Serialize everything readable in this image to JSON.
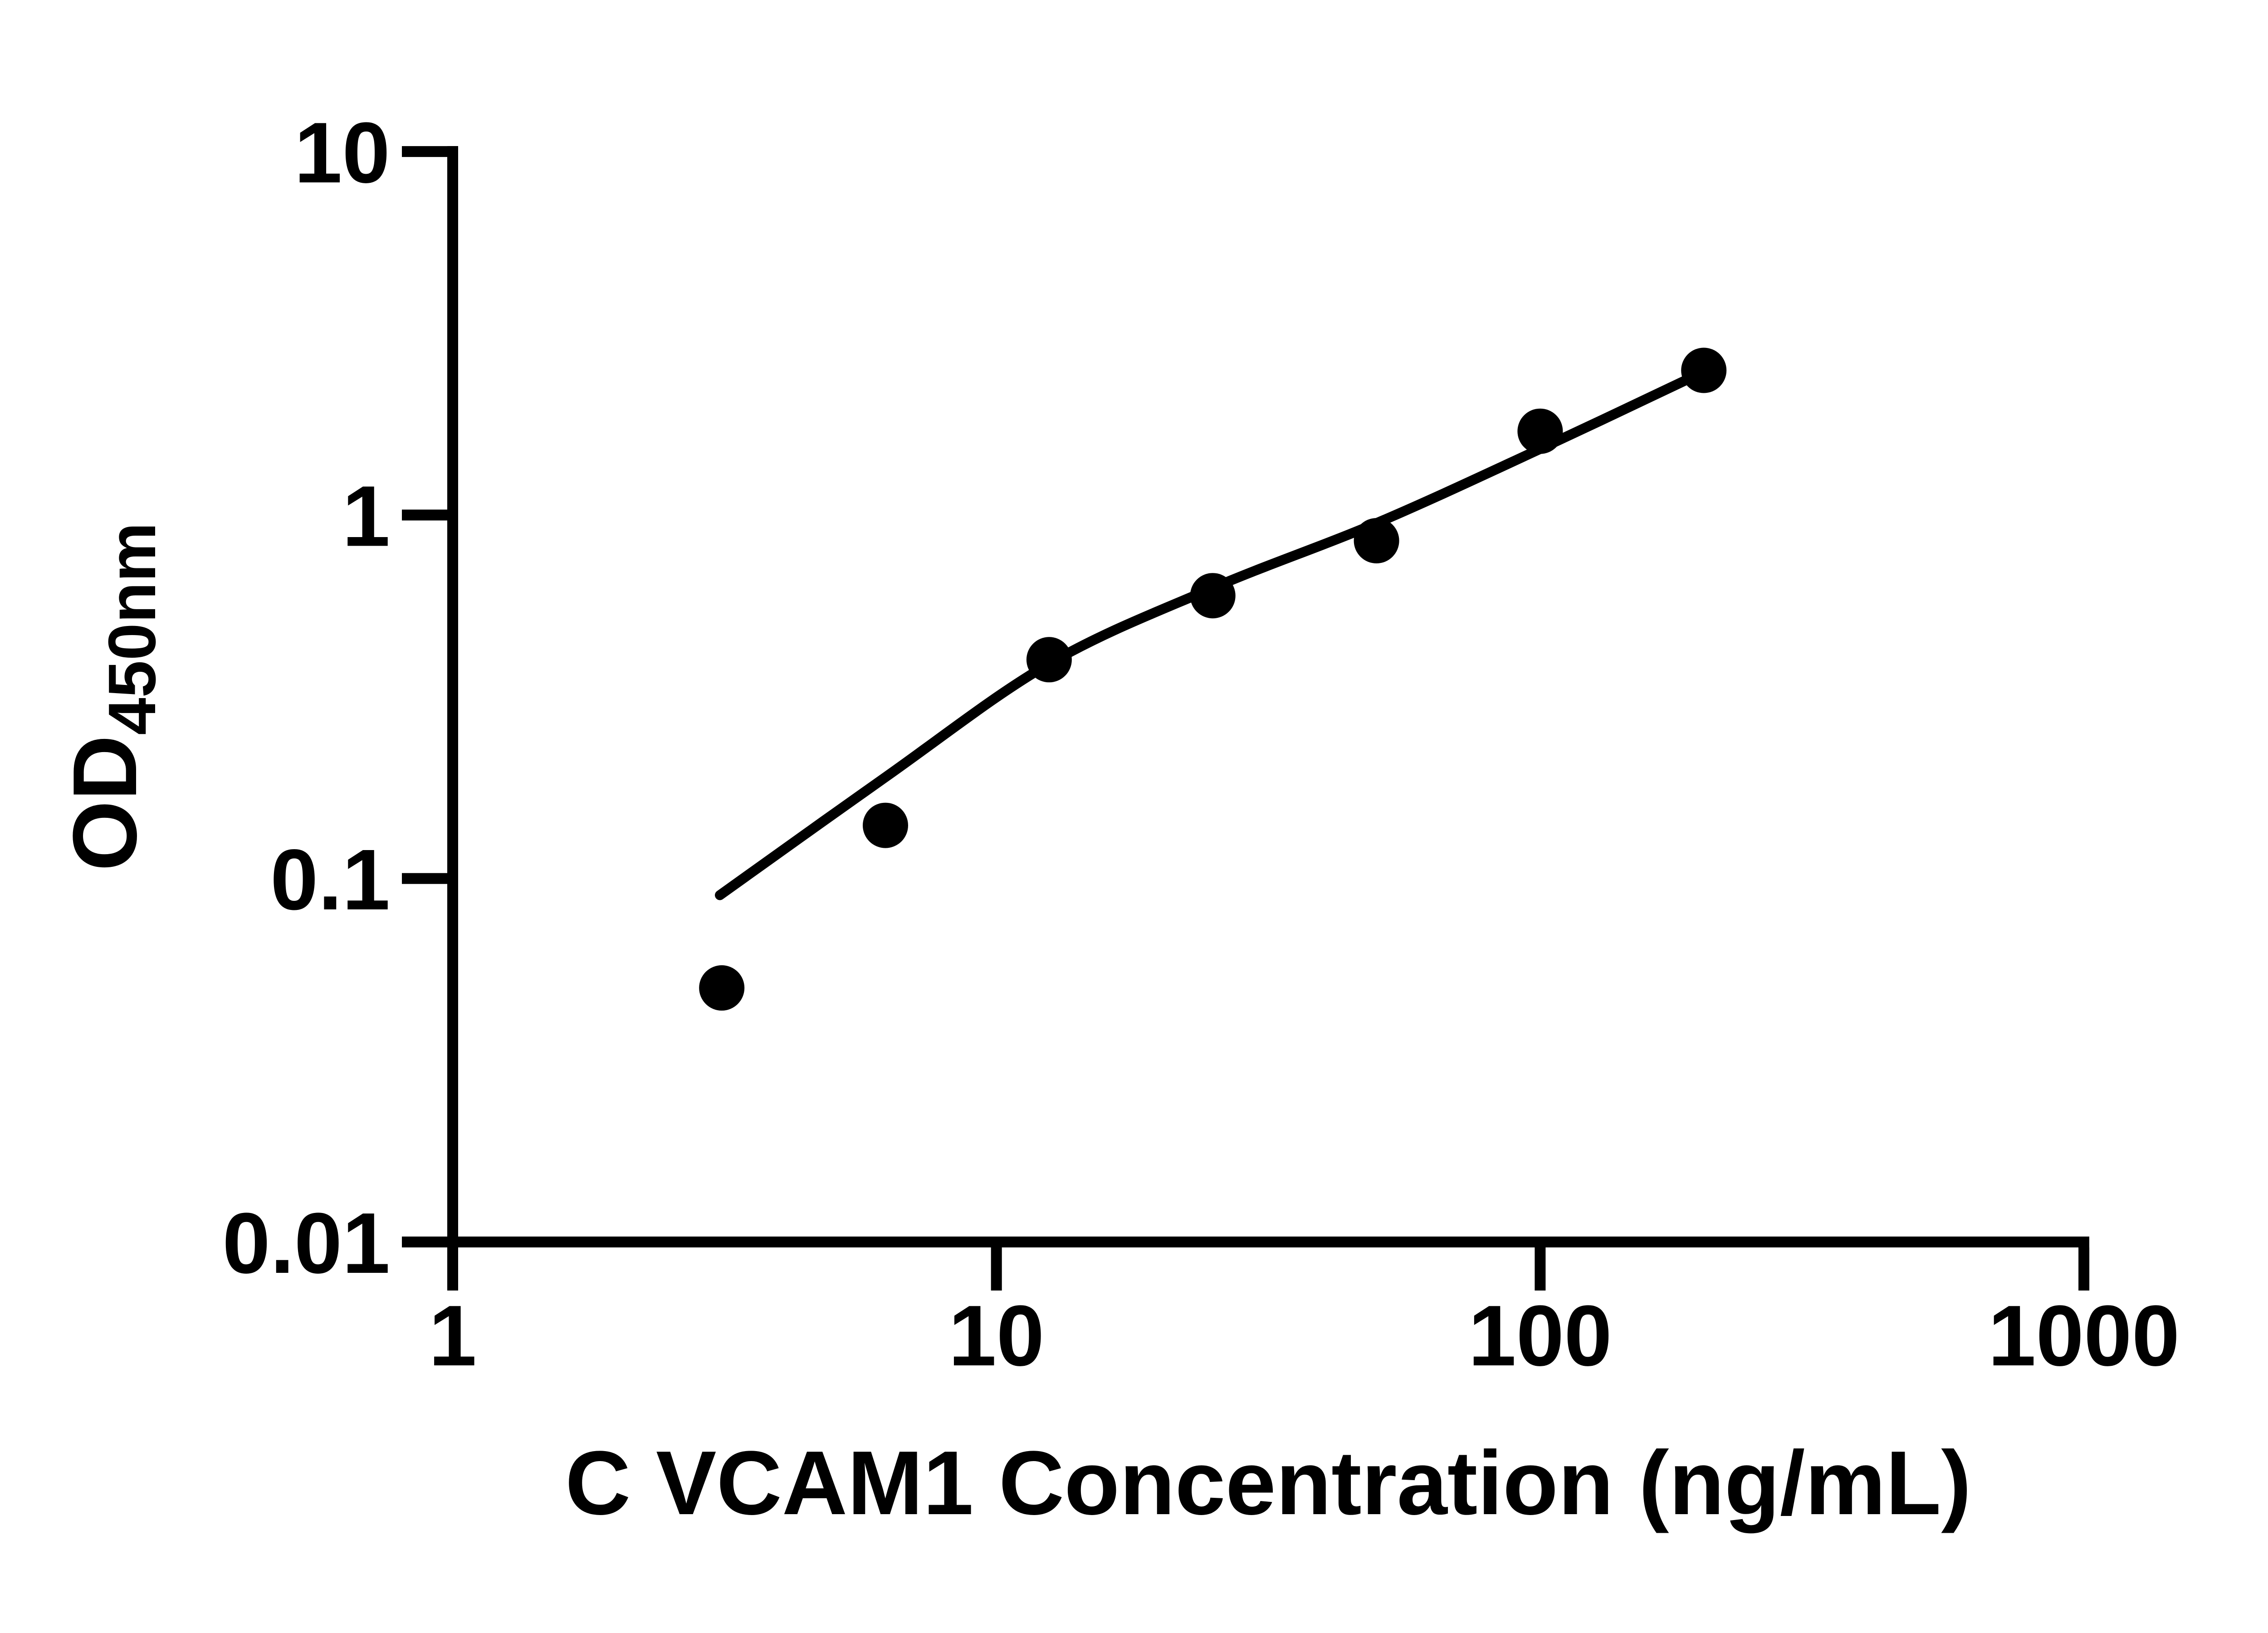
{
  "chart_data": {
    "type": "scatter",
    "xlabel": "C VCAM1 Concentration (ng/mL)",
    "ylabel": "OD450nm",
    "ylabel_main": "OD",
    "ylabel_sub": "450nm",
    "x_scale": "log",
    "y_scale": "log",
    "xlim": [
      1,
      1000
    ],
    "ylim": [
      0.01,
      10
    ],
    "x_ticks": {
      "values": [
        1,
        10,
        100,
        1000
      ],
      "labels": [
        "1",
        "10",
        "100",
        "1000"
      ]
    },
    "y_ticks": {
      "values": [
        10,
        1,
        0.1,
        0.01
      ],
      "labels": [
        "10",
        "1",
        "0.1",
        "0.01"
      ]
    },
    "grid": false,
    "legend": false,
    "marker": {
      "shape": "filled-circle",
      "color": "#000000",
      "radius_px": 50
    },
    "line_color": "#000000",
    "axis_color": "#000000",
    "background": "#ffffff",
    "series": [
      {
        "name": "standard-points",
        "type": "scatter",
        "x": [
          3.125,
          6.25,
          12.5,
          25,
          50,
          100,
          200
        ],
        "y": [
          0.05,
          0.14,
          0.4,
          0.6,
          0.85,
          1.7,
          2.5
        ]
      },
      {
        "name": "fit-line",
        "type": "line",
        "x": [
          3.1,
          6.25,
          12.5,
          25,
          50,
          100,
          200
        ],
        "y": [
          0.09,
          0.19,
          0.39,
          0.63,
          0.95,
          1.52,
          2.48
        ]
      }
    ]
  }
}
